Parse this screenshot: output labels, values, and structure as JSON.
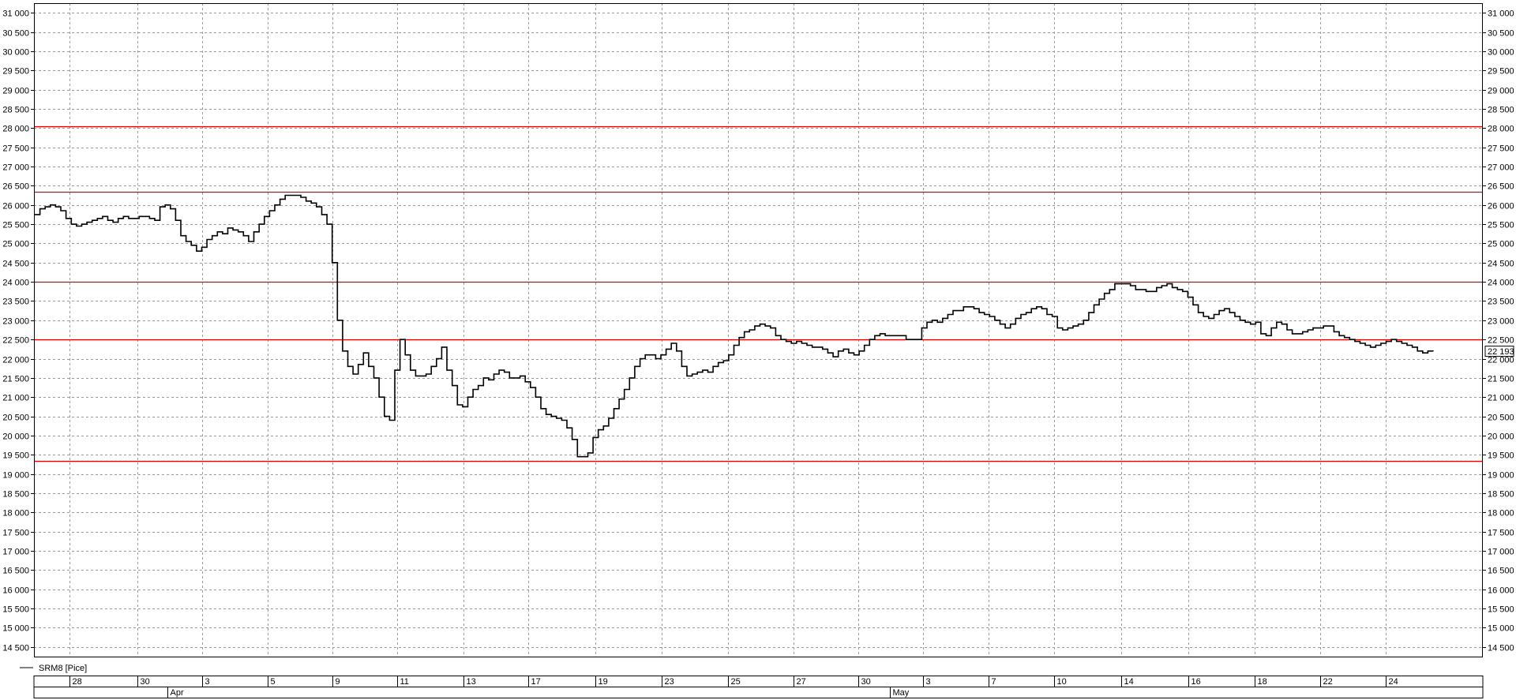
{
  "chart_data": {
    "type": "line",
    "title": "",
    "xlabel": "",
    "ylabel": "",
    "legend": {
      "label": "SRM8 [Pice]",
      "placement": "bottom-left"
    },
    "ylim": [
      14250,
      31250
    ],
    "y_ticks": [
      14500,
      15000,
      15500,
      16000,
      16500,
      17000,
      17500,
      18000,
      18500,
      19000,
      19500,
      20000,
      20500,
      21000,
      21500,
      22000,
      22500,
      23000,
      23500,
      24000,
      24500,
      25000,
      25500,
      26000,
      26500,
      27000,
      27500,
      28000,
      28500,
      29000,
      29500,
      30000,
      30500,
      31000
    ],
    "y_tick_labels": [
      "14 500",
      "15 000",
      "15 500",
      "16 000",
      "16 500",
      "17 000",
      "17 500",
      "18 000",
      "18 500",
      "19 000",
      "19 500",
      "20 000",
      "20 500",
      "21 000",
      "21 500",
      "22 000",
      "22 500",
      "23 000",
      "23 500",
      "24 000",
      "24 500",
      "25 000",
      "25 500",
      "26 000",
      "26 500",
      "27 000",
      "27 500",
      "28 000",
      "28 500",
      "29 000",
      "29 500",
      "30 000",
      "30 500",
      "31 000"
    ],
    "grid": true,
    "x_day_labels": [
      "28",
      "30",
      "3",
      "5",
      "9",
      "11",
      "13",
      "17",
      "19",
      "23",
      "25",
      "27",
      "30",
      "3",
      "7",
      "10",
      "14",
      "16",
      "18",
      "22",
      "24"
    ],
    "x_month_labels": [
      "Apr",
      "May"
    ],
    "horizontal_lines": [
      28050,
      26350,
      24000,
      22500,
      19350
    ],
    "horizontal_line_color": "#e00000",
    "last_value_label": "22 193",
    "last_value": 22193,
    "series": [
      {
        "values": [
          25750,
          25900,
          25950,
          26000,
          25950,
          25850,
          25650,
          25500,
          25450,
          25500,
          25550,
          25600,
          25650,
          25700,
          25600,
          25550,
          25650,
          25700,
          25650,
          25650,
          25700,
          25700,
          25650,
          25600,
          25950,
          26000,
          25900,
          25600,
          25200,
          25050,
          24950,
          24800,
          24900,
          25100,
          25200,
          25300,
          25250,
          25400,
          25350,
          25300,
          25200,
          25050,
          25300,
          25500,
          25700,
          25850,
          26000,
          26150,
          26250,
          26250,
          26250,
          26200,
          26100,
          26050,
          25950,
          25750,
          25500,
          24500,
          23000,
          22200,
          21800,
          21600,
          21850,
          22150,
          21800,
          21500,
          21000,
          20500,
          20400,
          21700,
          22500,
          22100,
          21700,
          21550,
          21550,
          21600,
          21800,
          22000,
          22300,
          21700,
          21300,
          20800,
          20750,
          21000,
          21200,
          21300,
          21500,
          21450,
          21600,
          21700,
          21650,
          21500,
          21500,
          21550,
          21400,
          21250,
          21000,
          20700,
          20550,
          20500,
          20450,
          20400,
          20200,
          19900,
          19450,
          19450,
          19550,
          19950,
          20150,
          20250,
          20450,
          20700,
          20950,
          21200,
          21500,
          21800,
          22000,
          22100,
          22100,
          22000,
          22100,
          22250,
          22400,
          22200,
          21800,
          21550,
          21600,
          21650,
          21700,
          21650,
          21800,
          21900,
          21950,
          22100,
          22350,
          22550,
          22700,
          22750,
          22850,
          22900,
          22850,
          22800,
          22600,
          22500,
          22450,
          22400,
          22450,
          22400,
          22350,
          22300,
          22300,
          22250,
          22150,
          22050,
          22200,
          22250,
          22150,
          22100,
          22200,
          22350,
          22500,
          22600,
          22650,
          22600,
          22600,
          22600,
          22600,
          22500,
          22500,
          22500,
          22800,
          22950,
          23000,
          22950,
          23050,
          23150,
          23250,
          23250,
          23350,
          23350,
          23300,
          23200,
          23150,
          23100,
          23000,
          22900,
          22800,
          22900,
          23050,
          23150,
          23200,
          23300,
          23350,
          23300,
          23150,
          23100,
          22800,
          22750,
          22800,
          22850,
          22900,
          23000,
          23200,
          23400,
          23550,
          23700,
          23800,
          23950,
          23950,
          23950,
          23900,
          23800,
          23800,
          23750,
          23750,
          23850,
          23900,
          23950,
          23850,
          23800,
          23750,
          23600,
          23400,
          23200,
          23100,
          23050,
          23150,
          23250,
          23300,
          23200,
          23100,
          23000,
          22950,
          22900,
          22950,
          22650,
          22600,
          22800,
          22950,
          22900,
          22750,
          22650,
          22650,
          22700,
          22750,
          22800,
          22800,
          22850,
          22850,
          22700,
          22600,
          22550,
          22500,
          22450,
          22400,
          22350,
          22300,
          22350,
          22400,
          22450,
          22500,
          22450,
          22400,
          22350,
          22300,
          22200,
          22150,
          22200,
          22193
        ]
      }
    ]
  },
  "panels": {
    "legend_text": "SRM8 [Pice]",
    "last_value_label": "22 193"
  }
}
